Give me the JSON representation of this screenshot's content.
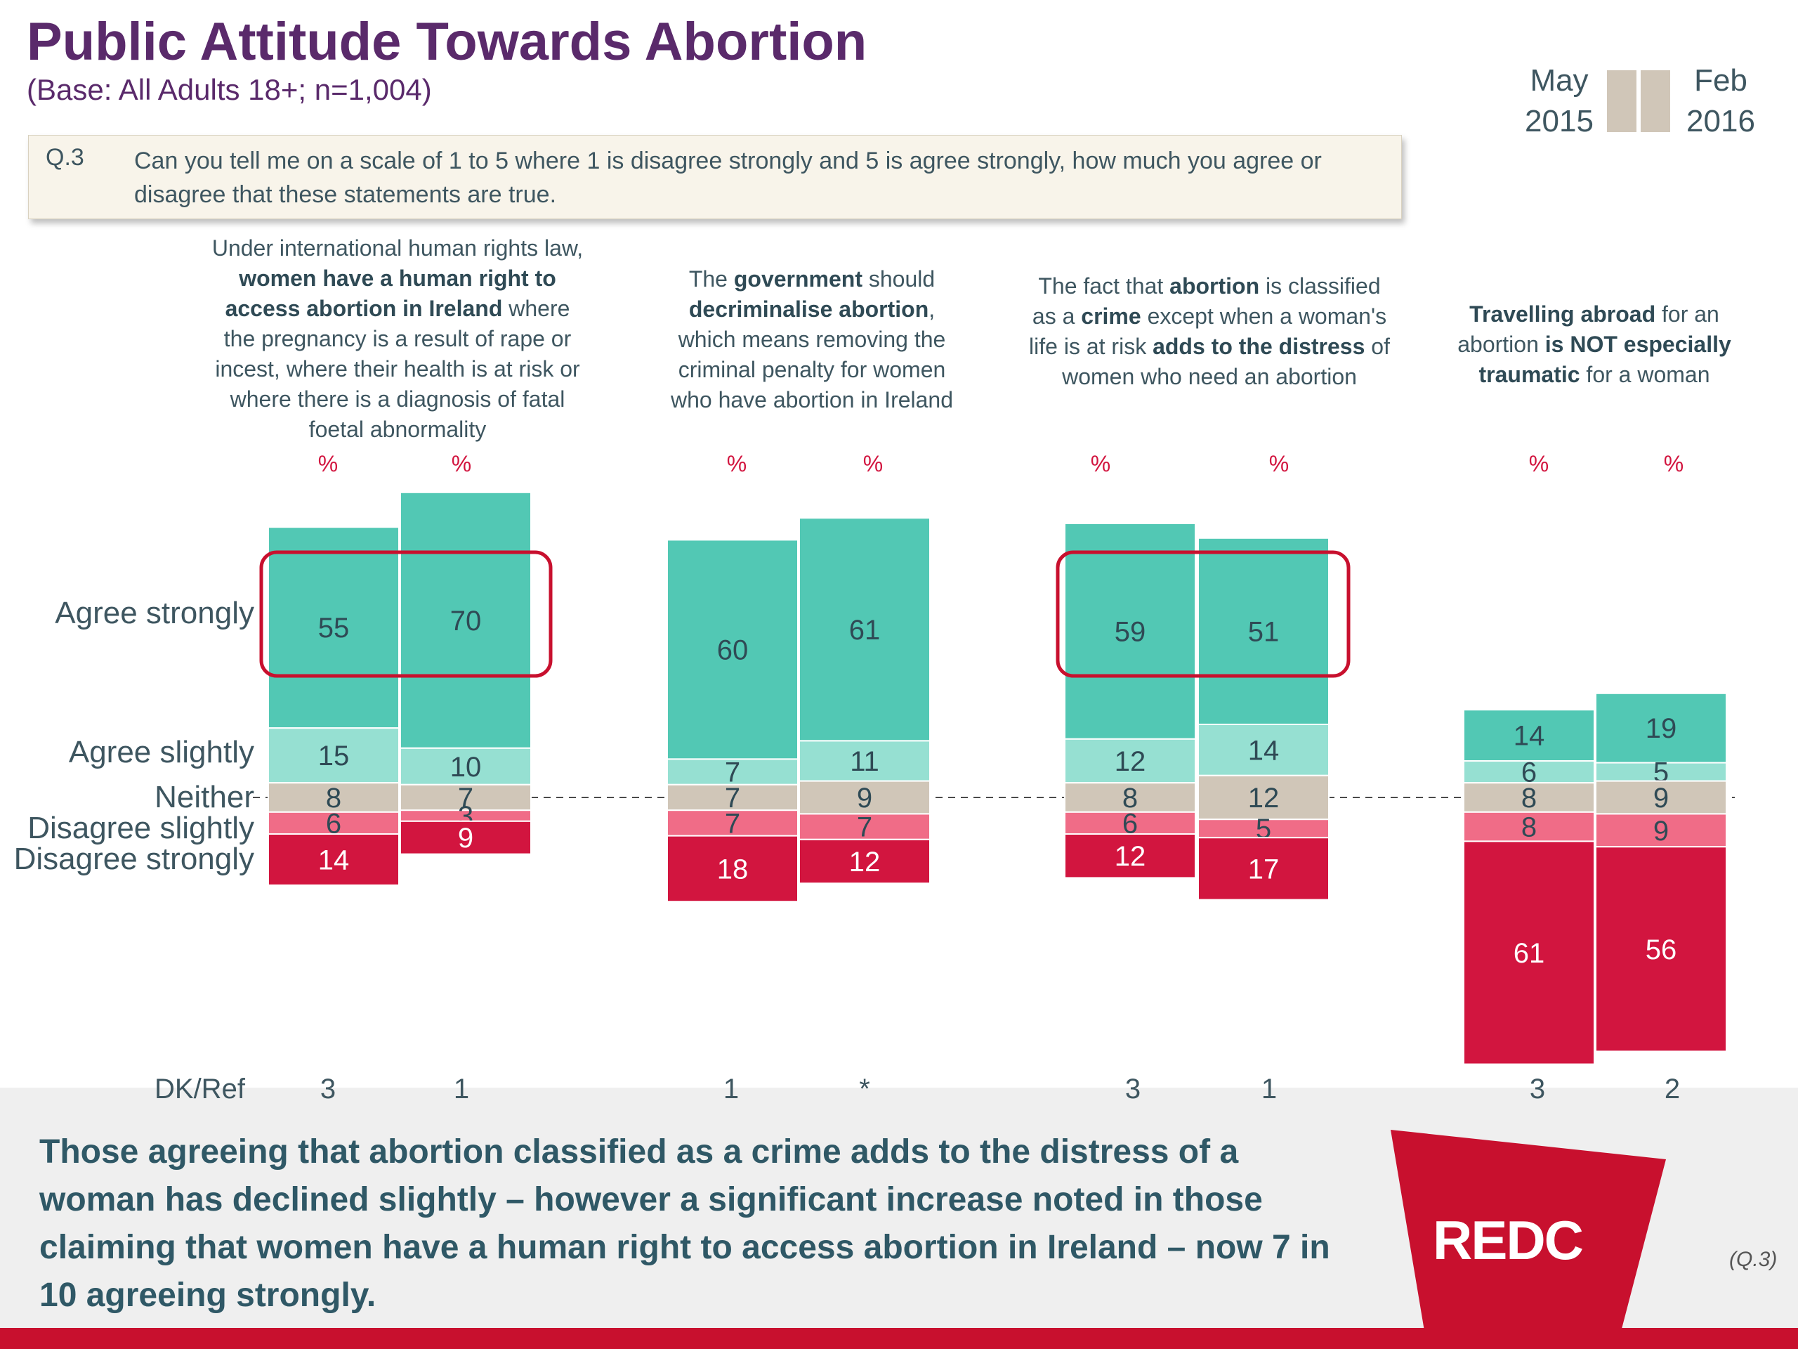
{
  "header": {
    "title": "Public Attitude Towards Abortion",
    "base": "(Base: All Adults 18+; n=1,004)"
  },
  "legend": {
    "left_month": "May",
    "left_year": "2015",
    "right_month": "Feb",
    "right_year": "2016"
  },
  "question": {
    "number": "Q.3",
    "text": "Can you tell me on a scale of 1 to 5 where 1 is disagree strongly and 5 is agree strongly, how much you agree or disagree that these statements are true."
  },
  "statements": [
    [
      {
        "t": "Under international human rights law, ",
        "b": false
      },
      {
        "t": "women have a human right to access abortion in Ireland",
        "b": true
      },
      {
        "t": " where the pregnancy is a result of rape or incest, where their health is at risk or where there is a diagnosis of fatal foetal abnormality",
        "b": false
      }
    ],
    [
      {
        "t": "The ",
        "b": false
      },
      {
        "t": "government",
        "b": true
      },
      {
        "t": " should ",
        "b": false
      },
      {
        "t": "decriminalise abortion",
        "b": true
      },
      {
        "t": ", which means removing the criminal penalty for women who have abortion in Ireland",
        "b": false
      }
    ],
    [
      {
        "t": "The fact that ",
        "b": false
      },
      {
        "t": "abortion",
        "b": true
      },
      {
        "t": " is classified as a ",
        "b": false
      },
      {
        "t": "crime",
        "b": true
      },
      {
        "t": " except when a woman's life is at risk ",
        "b": false
      },
      {
        "t": "adds to the distress",
        "b": true
      },
      {
        "t": " of women who need an abortion",
        "b": false
      }
    ],
    [
      {
        "t": "Travelling abroad",
        "b": true
      },
      {
        "t": " for an abortion ",
        "b": false
      },
      {
        "t": "is NOT especially traumatic",
        "b": true
      },
      {
        "t": " for a woman",
        "b": false
      }
    ]
  ],
  "percent_symbol": "%",
  "row_labels": {
    "agree_strongly": "Agree strongly",
    "agree_slightly": "Agree slightly",
    "neither": "Neither",
    "disagree_slightly": "Disagree slightly",
    "disagree_strongly": "Disagree strongly"
  },
  "dk": {
    "label": "DK/Ref",
    "values": [
      "3",
      "1",
      "1",
      "*",
      "3",
      "1",
      "3",
      "2"
    ]
  },
  "summary": "Those agreeing that abortion classified as a crime adds to the distress of a woman has declined slightly – however a significant increase noted in those claiming that women have a human right to access abortion in Ireland – now 7 in 10 agreeing strongly.",
  "logo": "REDC",
  "reference": "(Q.3)",
  "colors": {
    "agree_strongly": "#52c8b4",
    "agree_slightly": "#96e0d2",
    "neither": "#d0c6b8",
    "disagree_slightly": "#f06c87",
    "disagree_strongly": "#d2153f",
    "highlight": "#c8102e",
    "title": "#5a2a6b"
  },
  "chart_data": {
    "type": "bar",
    "stacked": true,
    "diverging": true,
    "unit": "%",
    "categories": [
      "Women have a human right to access abortion in Ireland (May 2015)",
      "Women have a human right to access abortion in Ireland (Feb 2016)",
      "Government should decriminalise abortion (May 2015)",
      "Government should decriminalise abortion (Feb 2016)",
      "Abortion classified as a crime adds to the distress (May 2015)",
      "Abortion classified as a crime adds to the distress (Feb 2016)",
      "Travelling abroad for an abortion is NOT especially traumatic (May 2015)",
      "Travelling abroad for an abortion is NOT especially traumatic (Feb 2016)"
    ],
    "series": [
      {
        "name": "Agree strongly",
        "values": [
          55,
          70,
          60,
          61,
          59,
          51,
          14,
          19
        ]
      },
      {
        "name": "Agree slightly",
        "values": [
          15,
          10,
          7,
          11,
          12,
          14,
          6,
          5
        ]
      },
      {
        "name": "Neither",
        "values": [
          8,
          7,
          7,
          9,
          8,
          12,
          8,
          9
        ]
      },
      {
        "name": "Disagree slightly",
        "values": [
          6,
          3,
          7,
          7,
          6,
          5,
          8,
          9
        ]
      },
      {
        "name": "Disagree strongly",
        "values": [
          14,
          9,
          18,
          12,
          12,
          17,
          61,
          56
        ]
      }
    ],
    "dk_ref": [
      "3",
      "1",
      "1",
      "*",
      "3",
      "1",
      "3",
      "2"
    ],
    "highlighted_groups": [
      0,
      2
    ]
  }
}
